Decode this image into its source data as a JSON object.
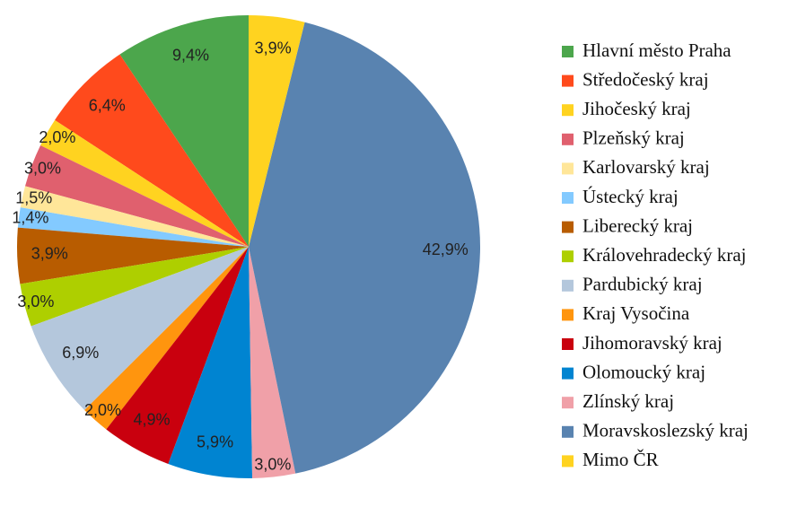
{
  "chart_data": {
    "type": "pie",
    "categories": [
      "Hlavní město Praha",
      "Středočeský kraj",
      "Jihočeský kraj",
      "Plzeňský kraj",
      "Karlovarský kraj",
      "Ústecký kraj",
      "Liberecký kraj",
      "Královehradecký kraj",
      "Pardubický kraj",
      "Kraj Vysočina",
      "Jihomoravský kraj",
      "Olomoucký kraj",
      "Zlínský kraj",
      "Moravskoslezský kraj",
      "Mimo ČR"
    ],
    "values": [
      9.4,
      6.4,
      2.0,
      3.0,
      1.5,
      1.4,
      3.9,
      3.0,
      6.9,
      2.0,
      4.9,
      5.9,
      3.0,
      42.9,
      3.9
    ],
    "value_labels": [
      "9,4%",
      "6,4%",
      "2,0%",
      "3,0%",
      "1,5%",
      "1,4%",
      "3,9%",
      "3,0%",
      "6,9%",
      "2,0%",
      "4,9%",
      "5,9%",
      "3,0%",
      "42,9%",
      "3,9%"
    ],
    "colors": [
      "#4ca64c",
      "#ff4a1c",
      "#ffd320",
      "#e0606e",
      "#ffe699",
      "#83caff",
      "#b85c00",
      "#aecf00",
      "#b4c7dc",
      "#ff950e",
      "#c9000e",
      "#0084d1",
      "#f0a0a8",
      "#5983b0",
      "#ffd320"
    ],
    "legend": "right"
  }
}
